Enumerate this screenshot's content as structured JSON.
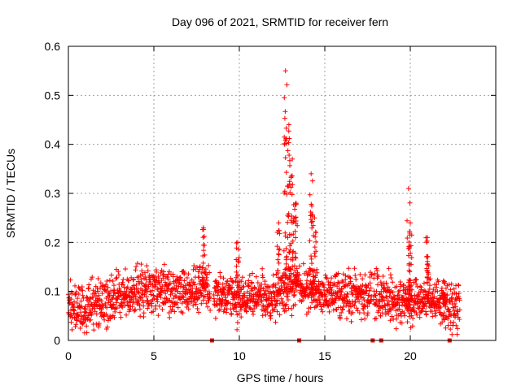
{
  "chart_data": {
    "type": "scatter",
    "title": "Day 096 of 2021, SRMTID for receiver fern",
    "xlabel": "GPS time / hours",
    "ylabel": "SRMTID / TECUs",
    "xlim": [
      0,
      25
    ],
    "ylim": [
      0,
      0.6
    ],
    "xticks": [
      0,
      5,
      10,
      15,
      20
    ],
    "yticks": [
      0,
      0.1,
      0.2,
      0.3,
      0.4,
      0.5,
      0.6
    ],
    "grid": true,
    "marker": "+",
    "color": "#ff0000",
    "series": [
      {
        "name": "SRMTID",
        "baseline": {
          "x": [
            0,
            1,
            2,
            3,
            4,
            5,
            6,
            7,
            8,
            9,
            10,
            11,
            12,
            13,
            14,
            15,
            16,
            17,
            18,
            19,
            20,
            21,
            22,
            23
          ],
          "y": [
            0.08,
            0.06,
            0.08,
            0.09,
            0.1,
            0.11,
            0.1,
            0.1,
            0.11,
            0.09,
            0.08,
            0.09,
            0.09,
            0.11,
            0.11,
            0.09,
            0.1,
            0.09,
            0.1,
            0.08,
            0.07,
            0.09,
            0.07,
            0.06
          ]
        },
        "peaks": [
          {
            "x": 7.9,
            "y": 0.23
          },
          {
            "x": 9.9,
            "y": 0.2
          },
          {
            "x": 12.3,
            "y": 0.24
          },
          {
            "x": 12.7,
            "y": 0.55
          },
          {
            "x": 12.9,
            "y": 0.44
          },
          {
            "x": 13.1,
            "y": 0.37
          },
          {
            "x": 13.3,
            "y": 0.28
          },
          {
            "x": 14.2,
            "y": 0.34
          },
          {
            "x": 14.4,
            "y": 0.25
          },
          {
            "x": 19.9,
            "y": 0.31
          },
          {
            "x": 20.0,
            "y": 0.24
          },
          {
            "x": 21.0,
            "y": 0.21
          },
          {
            "x": 22.0,
            "y": 0.12
          }
        ]
      },
      {
        "name": "gap-markers",
        "x": [
          8.4,
          13.5,
          17.8,
          18.3,
          22.3
        ],
        "y": [
          0,
          0,
          0,
          0,
          0
        ]
      }
    ]
  }
}
